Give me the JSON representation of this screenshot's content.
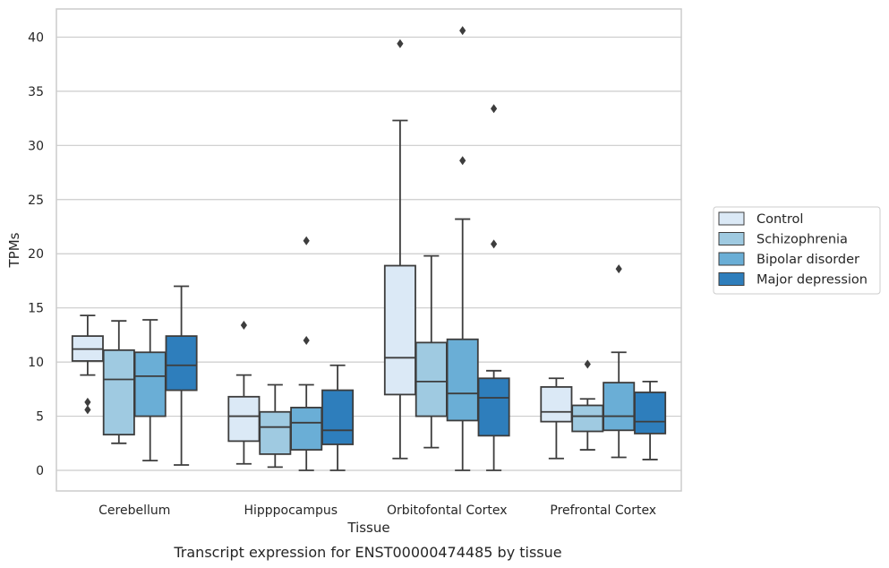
{
  "chart_data": {
    "type": "box",
    "caption": "Transcript expression for ENST00000474485 by tissue",
    "xlabel": "Tissue",
    "ylabel": "TPMs",
    "ylim": [
      -1.9,
      42.6
    ],
    "yticks": [
      0,
      5,
      10,
      15,
      20,
      25,
      30,
      35,
      40
    ],
    "grid": true,
    "legend_position": "right",
    "categories": [
      "Cerebellum",
      "Hipppocampus",
      "Orbitofontal Cortex",
      "Prefrontal Cortex"
    ],
    "series": [
      {
        "name": "Control",
        "color": "#dbe9f6",
        "boxes": [
          {
            "whisker_low": 8.8,
            "q1": 10.1,
            "median": 11.2,
            "q3": 12.4,
            "whisker_high": 14.3,
            "outliers": [
              5.6,
              6.3
            ]
          },
          {
            "whisker_low": 0.6,
            "q1": 2.7,
            "median": 5.0,
            "q3": 6.8,
            "whisker_high": 8.8,
            "outliers": [
              13.4
            ]
          },
          {
            "whisker_low": 1.1,
            "q1": 7.0,
            "median": 10.4,
            "q3": 18.9,
            "whisker_high": 32.3,
            "outliers": [
              39.4
            ]
          },
          {
            "whisker_low": 1.1,
            "q1": 4.5,
            "median": 5.4,
            "q3": 7.7,
            "whisker_high": 8.5,
            "outliers": []
          }
        ]
      },
      {
        "name": "Schizophrenia",
        "color": "#9fcae1",
        "boxes": [
          {
            "whisker_low": 2.5,
            "q1": 3.3,
            "median": 8.4,
            "q3": 11.1,
            "whisker_high": 13.8,
            "outliers": []
          },
          {
            "whisker_low": 0.3,
            "q1": 1.5,
            "median": 4.0,
            "q3": 5.4,
            "whisker_high": 7.9,
            "outliers": []
          },
          {
            "whisker_low": 2.1,
            "q1": 5.0,
            "median": 8.2,
            "q3": 11.8,
            "whisker_high": 19.8,
            "outliers": []
          },
          {
            "whisker_low": 1.9,
            "q1": 3.6,
            "median": 5.0,
            "q3": 6.0,
            "whisker_high": 6.6,
            "outliers": [
              9.8
            ]
          }
        ]
      },
      {
        "name": "Bipolar disorder",
        "color": "#6aaed6",
        "boxes": [
          {
            "whisker_low": 0.9,
            "q1": 5.0,
            "median": 8.7,
            "q3": 10.9,
            "whisker_high": 13.9,
            "outliers": []
          },
          {
            "whisker_low": 0.0,
            "q1": 1.9,
            "median": 4.4,
            "q3": 5.8,
            "whisker_high": 7.9,
            "outliers": [
              12.0,
              21.2
            ]
          },
          {
            "whisker_low": 0.0,
            "q1": 4.6,
            "median": 7.1,
            "q3": 12.1,
            "whisker_high": 23.2,
            "outliers": [
              28.6,
              40.6
            ]
          },
          {
            "whisker_low": 1.2,
            "q1": 3.7,
            "median": 5.0,
            "q3": 8.1,
            "whisker_high": 10.9,
            "outliers": [
              18.6
            ]
          }
        ]
      },
      {
        "name": "Major depression",
        "color": "#2e7ebc",
        "boxes": [
          {
            "whisker_low": 0.5,
            "q1": 7.4,
            "median": 9.7,
            "q3": 12.4,
            "whisker_high": 17.0,
            "outliers": []
          },
          {
            "whisker_low": 0.0,
            "q1": 2.4,
            "median": 3.7,
            "q3": 7.4,
            "whisker_high": 9.7,
            "outliers": []
          },
          {
            "whisker_low": 0.0,
            "q1": 3.2,
            "median": 6.7,
            "q3": 8.5,
            "whisker_high": 9.2,
            "outliers": [
              20.9,
              33.4
            ]
          },
          {
            "whisker_low": 1.0,
            "q1": 3.4,
            "median": 4.5,
            "q3": 7.2,
            "whisker_high": 8.2,
            "outliers": []
          }
        ]
      }
    ]
  }
}
